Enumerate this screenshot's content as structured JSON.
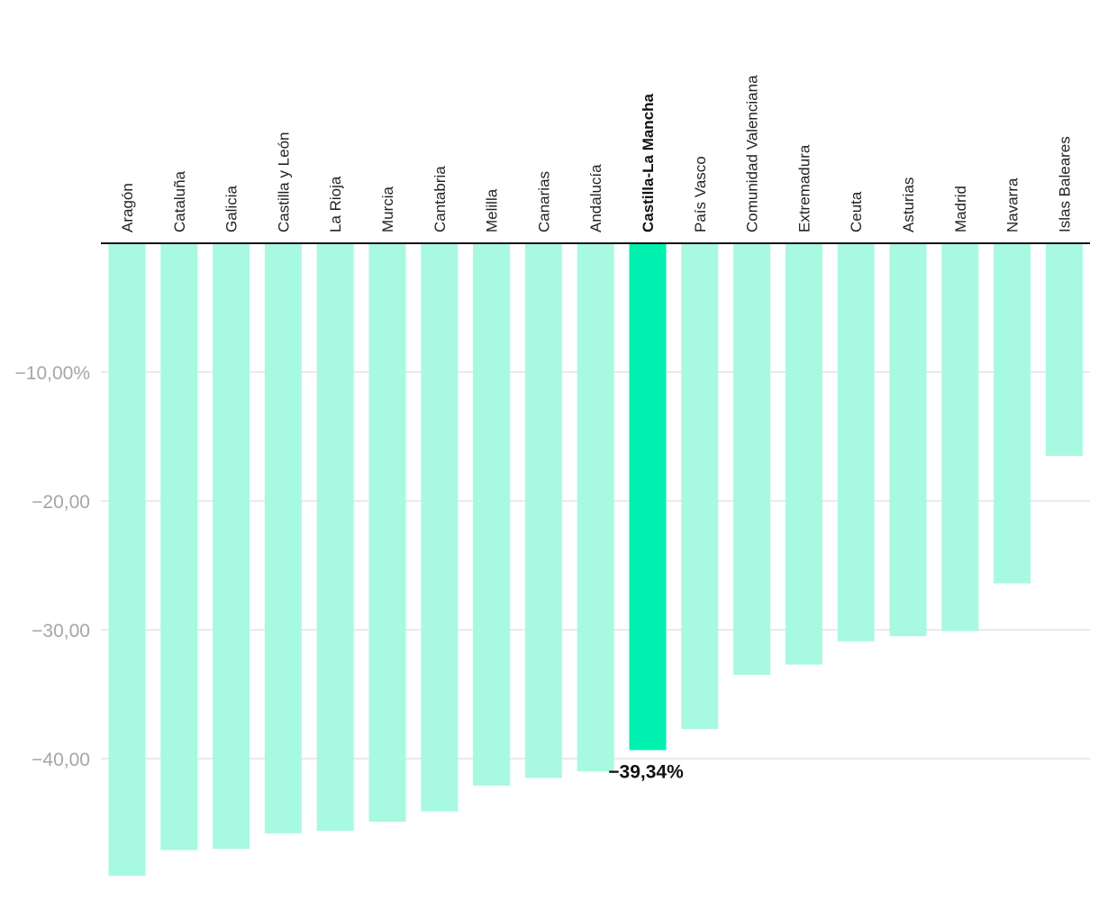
{
  "chart_data": {
    "type": "bar",
    "orientation": "vertical",
    "categories": [
      "Aragón",
      "Cataluña",
      "Galicia",
      "Castilla y León",
      "La Rioja",
      "Murcia",
      "Cantabria",
      "Melilla",
      "Canarias",
      "Andalucía",
      "Castilla-La Mancha",
      "País Vasco",
      "Comunidad Valenciana",
      "Extremadura",
      "Ceuta",
      "Asturias",
      "Madrid",
      "Navarra",
      "Islas Baleares"
    ],
    "values": [
      -49.1,
      -47.1,
      -47.0,
      -45.8,
      -45.6,
      -44.9,
      -44.1,
      -42.1,
      -41.5,
      -41.0,
      -39.34,
      -37.7,
      -33.5,
      -32.7,
      -30.9,
      -30.5,
      -30.1,
      -26.4,
      -16.5
    ],
    "highlight_index": 10,
    "highlight_label": "−39,34%",
    "ylim": [
      -49.5,
      0
    ],
    "yticks": [
      -10,
      -20,
      -30,
      -40
    ],
    "ytick_labels": [
      "−10,00%",
      "−20,00",
      "−30,00",
      "−40,00"
    ],
    "grid": true,
    "title": "",
    "xlabel": "",
    "ylabel": "",
    "colors": {
      "bar": "#a8f9e1",
      "highlight": "#00f0b0",
      "grid": "#e3e3e3",
      "axis": "#111111",
      "tick_text": "#a6a6a6"
    }
  }
}
